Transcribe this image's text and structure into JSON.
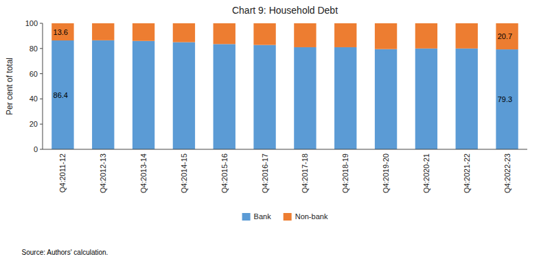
{
  "chart_data": {
    "type": "bar",
    "stacked": true,
    "title": "Chart 9: Household Debt",
    "y_label": "Per cent of total",
    "categories": [
      "Q4:2011-12",
      "Q4:2012-13",
      "Q4:2013-14",
      "Q4:2014-15",
      "Q4:2015-16",
      "Q4:2016-17",
      "Q4:2017-18",
      "Q4:2018-19",
      "Q4:2019-20",
      "Q4:2020-21",
      "Q4:2021-22",
      "Q4:2022-23"
    ],
    "series": [
      {
        "name": "Bank",
        "color": "#5B9BD5",
        "values": [
          86.4,
          86.5,
          86.0,
          85.0,
          83.5,
          82.8,
          81.0,
          81.0,
          79.5,
          80.0,
          80.0,
          79.3
        ]
      },
      {
        "name": "Non-bank",
        "color": "#ED7D31",
        "values": [
          13.6,
          13.5,
          14.0,
          15.0,
          16.5,
          17.2,
          19.0,
          19.0,
          20.5,
          20.0,
          20.0,
          20.7
        ]
      }
    ],
    "ylim": [
      0,
      100
    ],
    "yticks": [
      0,
      20,
      40,
      60,
      80,
      100
    ],
    "grid": false,
    "legend": "bottom",
    "annotations": [
      {
        "text": "86.4",
        "category": "Q4:2011-12",
        "series": "Bank"
      },
      {
        "text": "13.6",
        "category": "Q4:2011-12",
        "series": "Non-bank"
      },
      {
        "text": "79.3",
        "category": "Q4:2022-23",
        "series": "Bank"
      },
      {
        "text": "20.7",
        "category": "Q4:2022-23",
        "series": "Non-bank"
      }
    ],
    "source": "Source: Authors' calculation."
  }
}
